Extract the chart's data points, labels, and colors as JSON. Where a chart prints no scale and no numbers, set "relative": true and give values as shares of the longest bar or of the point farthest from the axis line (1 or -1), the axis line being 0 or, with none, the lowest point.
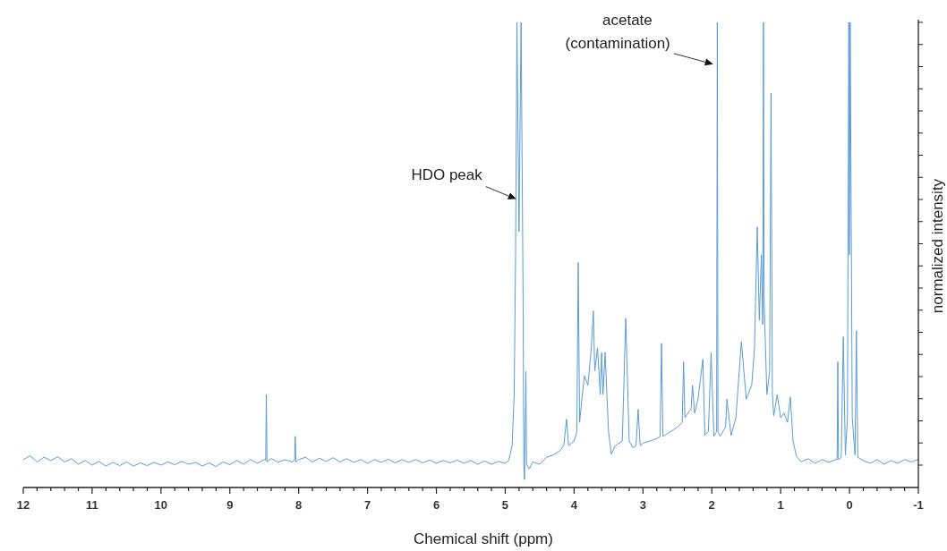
{
  "chart_data": {
    "type": "line",
    "relative": true,
    "xlabel": "Chemical shift (ppm)",
    "ylabel": "normalized intensity",
    "xlim": [
      12,
      -1
    ],
    "xticks": [
      12,
      {
        "value": 11.8,
        "label": null
      },
      {
        "value": 11.6,
        "label": null
      },
      {
        "value": 11.4,
        "label": null
      },
      {
        "value": 11.2,
        "label": null
      },
      11,
      {
        "value": 10.8,
        "label": null
      },
      {
        "value": 10.6,
        "label": null
      },
      {
        "value": 10.4,
        "label": null
      },
      {
        "value": 10.2,
        "label": null
      },
      10,
      {
        "value": 9.8,
        "label": null
      },
      {
        "value": 9.6,
        "label": null
      },
      {
        "value": 9.4,
        "label": null
      },
      {
        "value": 9.2,
        "label": null
      },
      9,
      {
        "value": 8.8,
        "label": null
      },
      {
        "value": 8.6,
        "label": null
      },
      {
        "value": 8.4,
        "label": null
      },
      {
        "value": 8.2,
        "label": null
      },
      8,
      {
        "value": 7.8,
        "label": null
      },
      {
        "value": 7.6,
        "label": null
      },
      {
        "value": 7.4,
        "label": null
      },
      {
        "value": 7.2,
        "label": null
      },
      7,
      {
        "value": 6.8,
        "label": null
      },
      {
        "value": 6.6,
        "label": null
      },
      {
        "value": 6.4,
        "label": null
      },
      {
        "value": 6.2,
        "label": null
      },
      6,
      {
        "value": 5.8,
        "label": null
      },
      {
        "value": 5.6,
        "label": null
      },
      {
        "value": 5.4,
        "label": null
      },
      {
        "value": 5.2,
        "label": null
      },
      5,
      {
        "value": 4.8,
        "label": null
      },
      {
        "value": 4.6,
        "label": null
      },
      {
        "value": 4.4,
        "label": null
      },
      {
        "value": 4.2,
        "label": null
      },
      4,
      {
        "value": 3.8,
        "label": null
      },
      {
        "value": 3.6,
        "label": null
      },
      {
        "value": 3.4,
        "label": null
      },
      {
        "value": 3.2,
        "label": null
      },
      3,
      {
        "value": 2.8,
        "label": null
      },
      {
        "value": 2.6,
        "label": null
      },
      {
        "value": 2.4,
        "label": null
      },
      {
        "value": 2.2,
        "label": null
      },
      2,
      {
        "value": 1.8,
        "label": null
      },
      {
        "value": 1.6,
        "label": null
      },
      {
        "value": 1.4,
        "label": null
      },
      {
        "value": 1.2,
        "label": null
      },
      1,
      {
        "value": 0.8,
        "label": null
      },
      {
        "value": 0.6,
        "label": null
      },
      {
        "value": 0.4,
        "label": null
      },
      {
        "value": 0.2,
        "label": null
      },
      0,
      {
        "value": -0.2,
        "label": null
      },
      {
        "value": -0.4,
        "label": null
      },
      {
        "value": -0.6,
        "label": null
      },
      {
        "value": -0.8,
        "label": null
      },
      -1
    ],
    "annotations": [
      {
        "text": "HDO peak",
        "x": 4.84,
        "y": 0.62
      },
      {
        "text": "acetate\n(contamination)",
        "x": 1.98,
        "y": 0.91
      }
    ],
    "series": [
      {
        "color": "#5b9bd5",
        "x": [
          12,
          11.9,
          11.8,
          11.7,
          11.6,
          11.5,
          11.4,
          11.3,
          11.2,
          11.1,
          11,
          10.9,
          10.8,
          10.7,
          10.6,
          10.5,
          10.4,
          10.3,
          10.2,
          10.1,
          10,
          9.9,
          9.8,
          9.7,
          9.6,
          9.5,
          9.4,
          9.3,
          9.2,
          9.1,
          9,
          8.9,
          8.8,
          8.7,
          8.6,
          8.5,
          8.48,
          8.47,
          8.46,
          8.4,
          8.3,
          8.2,
          8.1,
          8.06,
          8.05,
          8.04,
          8,
          7.9,
          7.8,
          7.7,
          7.6,
          7.5,
          7.4,
          7.3,
          7.2,
          7.1,
          7,
          6.9,
          6.8,
          6.7,
          6.6,
          6.5,
          6.4,
          6.3,
          6.2,
          6.1,
          6,
          5.9,
          5.8,
          5.7,
          5.6,
          5.5,
          5.4,
          5.3,
          5.2,
          5.1,
          5,
          4.95,
          4.9,
          4.87,
          4.85,
          4.83,
          4.81,
          4.8,
          4.79,
          4.77,
          4.75,
          4.74,
          4.735,
          4.73,
          4.72,
          4.7,
          4.69,
          4.65,
          4.6,
          4.5,
          4.4,
          4.3,
          4.2,
          4.15,
          4.11,
          4.08,
          4.0,
          3.96,
          3.94,
          3.92,
          3.88,
          3.85,
          3.8,
          3.75,
          3.72,
          3.7,
          3.66,
          3.62,
          3.6,
          3.58,
          3.55,
          3.5,
          3.46,
          3.4,
          3.3,
          3.25,
          3.2,
          3.15,
          3.1,
          3.07,
          3.04,
          3.0,
          2.9,
          2.8,
          2.75,
          2.73,
          2.71,
          2.6,
          2.5,
          2.43,
          2.41,
          2.39,
          2.3,
          2.28,
          2.25,
          2.2,
          2.13,
          2.1,
          2.05,
          2.01,
          1.97,
          1.93,
          1.92,
          1.91,
          1.88,
          1.8,
          1.78,
          1.72,
          1.65,
          1.57,
          1.5,
          1.42,
          1.38,
          1.34,
          1.31,
          1.28,
          1.26,
          1.25,
          1.24,
          1.2,
          1.16,
          1.14,
          1.12,
          1.1,
          1.05,
          1.0,
          0.95,
          0.9,
          0.86,
          0.82,
          0.77,
          0.7,
          0.6,
          0.5,
          0.4,
          0.3,
          0.2,
          0.18,
          0.17,
          0.16,
          0.12,
          0.09,
          0.06,
          0.03,
          0.01,
          0,
          -0.01,
          -0.04,
          -0.08,
          -0.1,
          -0.12,
          -0.2,
          -0.3,
          -0.4,
          -0.5,
          -0.6,
          -0.7,
          -0.8,
          -0.9,
          -1
        ],
        "values": [
          0.06,
          0.068,
          0.055,
          0.065,
          0.058,
          0.066,
          0.055,
          0.062,
          0.05,
          0.058,
          0.048,
          0.056,
          0.046,
          0.054,
          0.047,
          0.055,
          0.046,
          0.053,
          0.047,
          0.054,
          0.048,
          0.055,
          0.049,
          0.056,
          0.05,
          0.054,
          0.046,
          0.053,
          0.045,
          0.055,
          0.049,
          0.058,
          0.05,
          0.06,
          0.052,
          0.06,
          0.058,
          0.2,
          0.055,
          0.062,
          0.054,
          0.06,
          0.055,
          0.058,
          0.11,
          0.055,
          0.06,
          0.065,
          0.055,
          0.063,
          0.056,
          0.064,
          0.055,
          0.062,
          0.054,
          0.06,
          0.052,
          0.06,
          0.054,
          0.061,
          0.053,
          0.06,
          0.054,
          0.06,
          0.053,
          0.059,
          0.052,
          0.058,
          0.053,
          0.059,
          0.052,
          0.058,
          0.05,
          0.057,
          0.05,
          0.056,
          0.052,
          0.058,
          0.09,
          0.2,
          0.5,
          1,
          0.7,
          0.55,
          0.7,
          1,
          0.6,
          0.39,
          0.2,
          0.05,
          0.017,
          0.25,
          0.05,
          0.04,
          0.055,
          0.05,
          0.065,
          0.07,
          0.08,
          0.09,
          0.147,
          0.09,
          0.1,
          0.12,
          0.484,
          0.14,
          0.2,
          0.24,
          0.22,
          0.3,
          0.38,
          0.25,
          0.3,
          0.2,
          0.29,
          0.2,
          0.29,
          0.12,
          0.072,
          0.09,
          0.1,
          0.364,
          0.1,
          0.086,
          0.09,
          0.168,
          0.09,
          0.095,
          0.1,
          0.105,
          0.11,
          0.31,
          0.11,
          0.12,
          0.13,
          0.14,
          0.27,
          0.15,
          0.17,
          0.22,
          0.16,
          0.19,
          0.276,
          0.112,
          0.12,
          0.29,
          0.11,
          0.12,
          1,
          0.12,
          0.11,
          0.13,
          0.19,
          0.112,
          0.15,
          0.314,
          0.19,
          0.22,
          0.3,
          0.56,
          0.36,
          0.5,
          0.35,
          1,
          0.4,
          0.2,
          0.25,
          0.848,
          0.2,
          0.154,
          0.2,
          0.15,
          0.16,
          0.14,
          0.195,
          0.1,
          0.067,
          0.055,
          0.062,
          0.052,
          0.06,
          0.054,
          0.06,
          0.06,
          0.27,
          0.06,
          0.065,
          0.324,
          0.07,
          0.15,
          1,
          0.5,
          1,
          0.15,
          0.07,
          0.337,
          0.065,
          0.058,
          0.052,
          0.06,
          0.05,
          0.058,
          0.052,
          0.06,
          0.055,
          0.06
        ]
      }
    ]
  }
}
